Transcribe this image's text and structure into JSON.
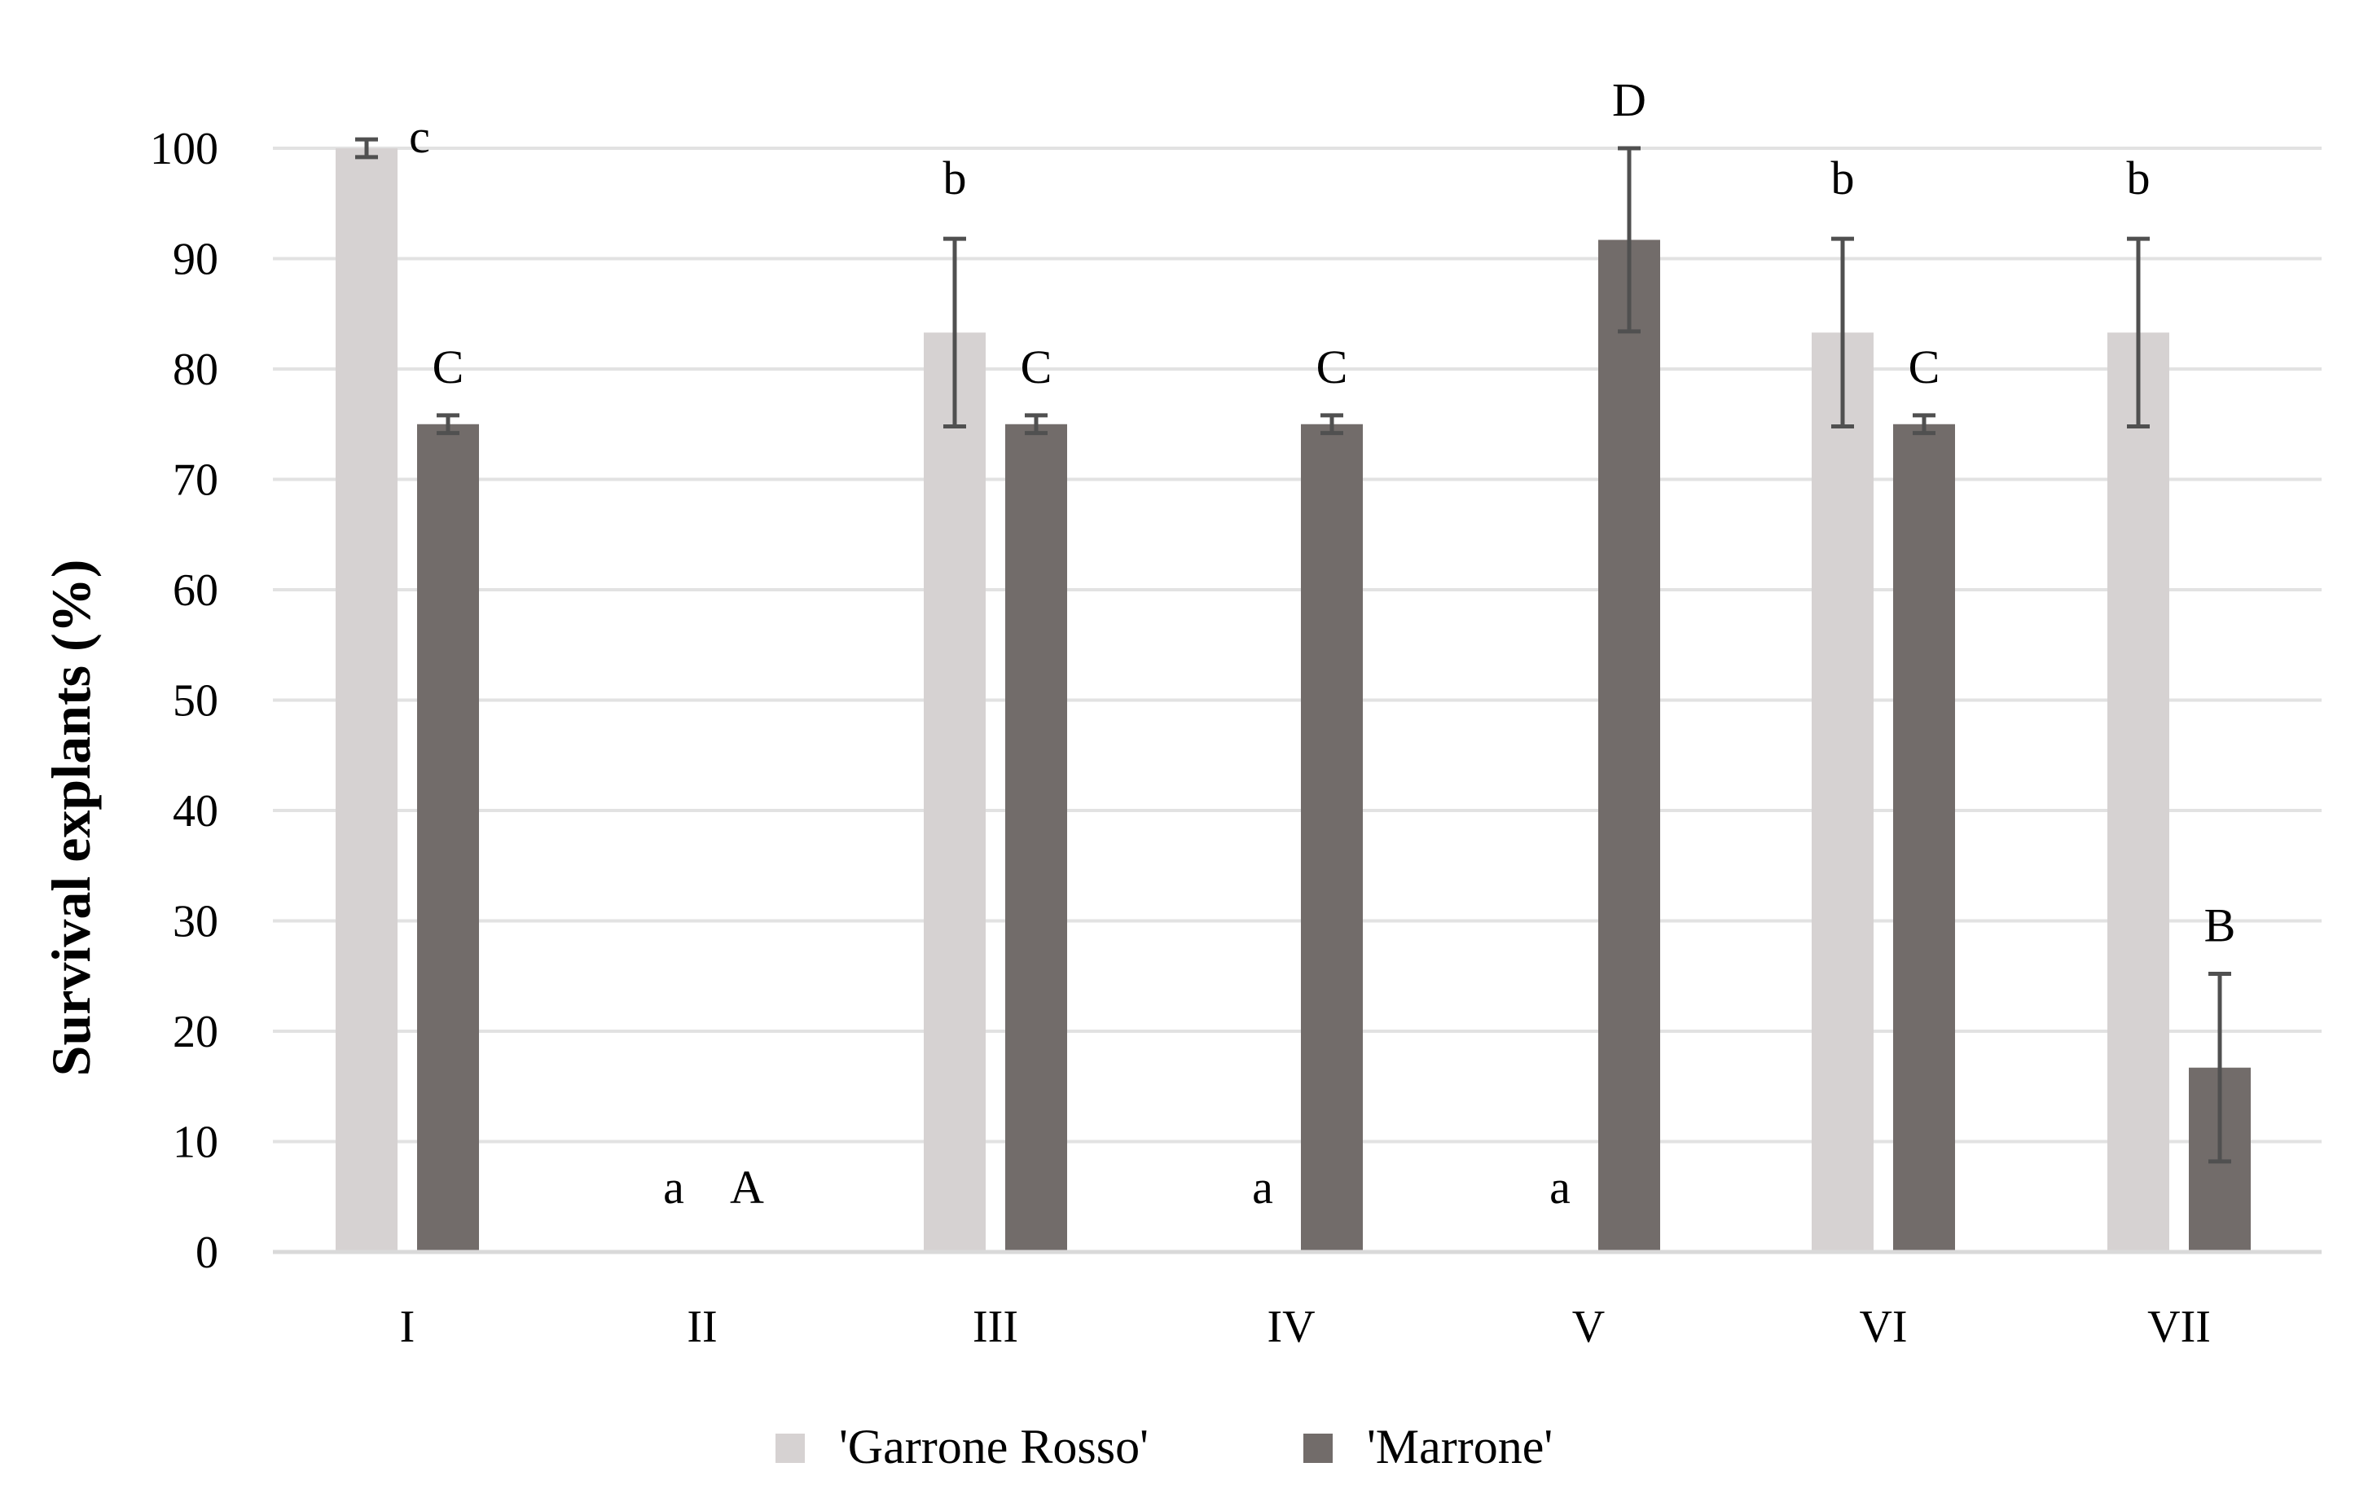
{
  "chart_data": {
    "type": "bar",
    "title": "",
    "xlabel": "",
    "ylabel": "Survival explants (%)",
    "ylim": [
      0,
      100
    ],
    "yticks": [
      "0",
      "10",
      "20",
      "30",
      "40",
      "50",
      "60",
      "70",
      "80",
      "90",
      "100"
    ],
    "categories": [
      "I",
      "II",
      "III",
      "IV",
      "V",
      "VI",
      "VII"
    ],
    "grid": true,
    "legend_position": "bottom",
    "series": [
      {
        "name": "'Garrone Rosso'",
        "color": "#d6d2d2",
        "values": [
          100,
          0,
          83.3,
          0,
          0,
          83.3,
          83.3
        ],
        "errors": [
          0.8,
          0,
          8.5,
          0,
          0,
          8.5,
          8.5
        ],
        "labels": [
          "c",
          "a",
          "b",
          "a",
          "a",
          "b",
          "b"
        ]
      },
      {
        "name": "'Marrone'",
        "color": "#726c6a",
        "values": [
          75,
          0,
          75,
          75,
          91.7,
          75,
          16.7
        ],
        "errors": [
          0.8,
          0,
          0.8,
          0.8,
          8.3,
          0.8,
          8.5
        ],
        "labels": [
          "C",
          "A",
          "C",
          "C",
          "D",
          "C",
          "B"
        ]
      }
    ],
    "error_bar_color": "#505050",
    "grid_color": "#e2e2e2",
    "axis_color": "#d9d9d9"
  }
}
